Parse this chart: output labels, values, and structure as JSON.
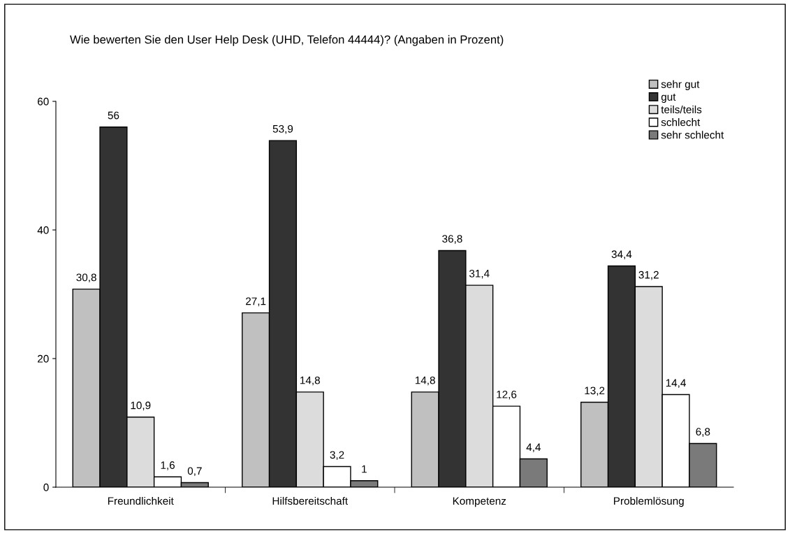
{
  "chart_data": {
    "type": "bar",
    "title": "Wie bewerten Sie den User Help Desk (UHD, Telefon 44444)? (Angaben in Prozent)",
    "categories": [
      "Freundlichkeit",
      "Hilfsbereitschaft",
      "Kompetenz",
      "Problemlösung"
    ],
    "series": [
      {
        "name": "sehr gut",
        "color": "#c0c0c0",
        "values": [
          30.8,
          27.1,
          14.8,
          13.2
        ],
        "value_labels": [
          "30,8",
          "27,1",
          "14,8",
          "13,2"
        ]
      },
      {
        "name": "gut",
        "color": "#333333",
        "values": [
          56,
          53.9,
          36.8,
          34.4
        ],
        "value_labels": [
          "56",
          "53,9",
          "36,8",
          "34,4"
        ]
      },
      {
        "name": "teils/teils",
        "color": "#dcdcdc",
        "values": [
          10.9,
          14.8,
          31.4,
          31.2
        ],
        "value_labels": [
          "10,9",
          "14,8",
          "31,4",
          "31,2"
        ]
      },
      {
        "name": "schlecht",
        "color": "#ffffff",
        "values": [
          1.6,
          3.2,
          12.6,
          14.4
        ],
        "value_labels": [
          "1,6",
          "3,2",
          "12,6",
          "14,4"
        ]
      },
      {
        "name": "sehr schlecht",
        "color": "#7a7a7a",
        "values": [
          0.7,
          1,
          4.4,
          6.8
        ],
        "value_labels": [
          "0,7",
          "1",
          "4,4",
          "6,8"
        ]
      }
    ],
    "ylim": [
      0,
      60
    ],
    "yticks": [
      0,
      20,
      40,
      60
    ],
    "grid": false,
    "legend": "top right"
  }
}
